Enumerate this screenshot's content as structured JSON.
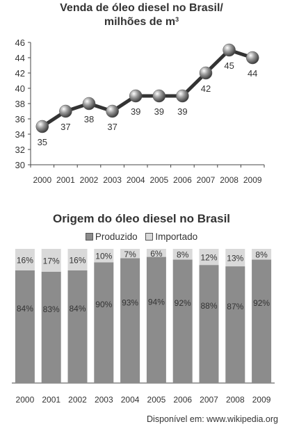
{
  "chart_data": [
    {
      "type": "line",
      "title_line1": "Venda de óleo diesel no Brasil/",
      "title_line2": "milhões de m",
      "title_sup": "3",
      "x": [
        "2000",
        "2001",
        "2002",
        "2003",
        "2004",
        "2005",
        "2006",
        "2007",
        "2008",
        "2009"
      ],
      "values": [
        35,
        37,
        38,
        37,
        39,
        39,
        39,
        42,
        45,
        44
      ],
      "data_labels": [
        "35",
        "37",
        "38",
        "37",
        "39",
        "39",
        "39",
        "42",
        "45",
        "44"
      ],
      "ylim": [
        30,
        46
      ],
      "yticks": [
        "30",
        "32",
        "34",
        "36",
        "38",
        "40",
        "42",
        "44",
        "46"
      ],
      "grid": false,
      "line_color": "#333333",
      "marker_color": "#9a9a9a"
    },
    {
      "type": "bar",
      "stacked": true,
      "title": "Origem do óleo diesel no Brasil",
      "categories": [
        "2000",
        "2001",
        "2002",
        "2003",
        "2004",
        "2005",
        "2006",
        "2007",
        "2008",
        "2009"
      ],
      "series": [
        {
          "name": "Produzido",
          "values": [
            84,
            83,
            84,
            90,
            93,
            94,
            92,
            88,
            87,
            92
          ],
          "labels": [
            "84%",
            "83%",
            "84%",
            "90%",
            "93%",
            "94%",
            "92%",
            "88%",
            "87%",
            "92%"
          ],
          "color": "#8c8c8c"
        },
        {
          "name": "Importado",
          "values": [
            16,
            17,
            16,
            10,
            7,
            6,
            8,
            12,
            13,
            8
          ],
          "labels": [
            "16%",
            "17%",
            "16%",
            "10%",
            "7%",
            "6%",
            "8%",
            "12%",
            "13%",
            "8%"
          ],
          "color": "#d9d9d9"
        }
      ],
      "ylim": [
        0,
        100
      ],
      "legend": "top"
    }
  ],
  "source": "Disponível em: www.wikipedia.org"
}
